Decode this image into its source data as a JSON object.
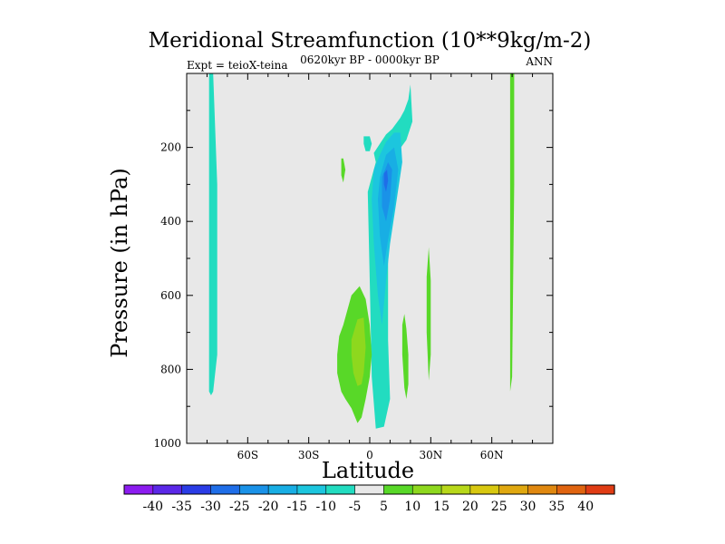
{
  "chart_data": {
    "type": "heatmap",
    "title": "Meridional Streamfunction (10**9kg/m-2)",
    "left_string": "Expt = teioX-teina",
    "center_string": "0620kyr BP - 0000kyr BP",
    "right_string": "ANN",
    "xlabel": "Latitude",
    "ylabel": "Pressure (in hPa)",
    "xlim": [
      -90,
      90
    ],
    "ylim": [
      1000,
      0
    ],
    "xticks": [
      {
        "value": -60,
        "label": "60S"
      },
      {
        "value": -30,
        "label": "30S"
      },
      {
        "value": 0,
        "label": "0"
      },
      {
        "value": 30,
        "label": "30N"
      },
      {
        "value": 60,
        "label": "60N"
      }
    ],
    "yticks": [
      {
        "value": 200,
        "label": "200"
      },
      {
        "value": 400,
        "label": "400"
      },
      {
        "value": 600,
        "label": "600"
      },
      {
        "value": 800,
        "label": "800"
      },
      {
        "value": 1000,
        "label": "1000"
      }
    ],
    "colorbar": {
      "levels": [
        -40,
        -35,
        -30,
        -25,
        -20,
        -15,
        -10,
        -5,
        5,
        10,
        15,
        20,
        25,
        30,
        35,
        40
      ],
      "labels": [
        "-40",
        "-35",
        "-30",
        "-25",
        "-20",
        "-15",
        "-10",
        "-5",
        "5",
        "10",
        "15",
        "20",
        "25",
        "30",
        "35",
        "40"
      ],
      "colors": [
        "#8c1cf0",
        "#5b28e8",
        "#2a3ce6",
        "#1f6ee8",
        "#1a92e8",
        "#18aee4",
        "#1cc6de",
        "#22dcc0",
        "#e8e8e8",
        "#58d828",
        "#8ed81e",
        "#b8d81a",
        "#d8c810",
        "#e0a810",
        "#e08810",
        "#e06410",
        "#e03c14"
      ]
    },
    "background_color": "#e8e8e8",
    "regions": [
      {
        "name": "sh-high-lat-cell",
        "value": -5,
        "color": "#22dcc0",
        "lat": [
          -79,
          -79,
          -78,
          -77,
          -75,
          -75,
          -77,
          -78
        ],
        "p": [
          0,
          860,
          870,
          860,
          760,
          300,
          0,
          0
        ]
      },
      {
        "name": "tropical-negative-cell",
        "value": -5,
        "color": "#22dcc0",
        "lat": [
          3,
          2,
          5,
          8,
          11,
          13,
          15,
          17,
          19,
          20,
          21,
          18,
          14,
          10,
          9,
          9,
          10,
          7,
          3,
          1,
          0,
          -1
        ],
        "p": [
          240,
          215,
          190,
          165,
          150,
          135,
          120,
          100,
          70,
          30,
          130,
          180,
          210,
          300,
          500,
          720,
          880,
          955,
          960,
          820,
          560,
          320
        ]
      },
      {
        "name": "tropical-minus-10",
        "value": -10,
        "color": "#1cc6de",
        "lat": [
          2,
          5,
          8,
          12,
          15,
          16,
          13,
          10,
          8,
          6,
          4,
          2,
          1
        ],
        "p": [
          260,
          220,
          185,
          160,
          160,
          240,
          350,
          460,
          560,
          680,
          600,
          460,
          340
        ]
      },
      {
        "name": "tropical-minus-15",
        "value": -15,
        "color": "#18aee4",
        "lat": [
          5,
          8,
          12,
          14,
          12,
          9,
          7,
          5,
          4
        ],
        "p": [
          280,
          220,
          200,
          260,
          360,
          450,
          520,
          440,
          340
        ]
      },
      {
        "name": "tropical-minus-20",
        "value": -20,
        "color": "#1a92e8",
        "lat": [
          6,
          9,
          11,
          10,
          8,
          6
        ],
        "p": [
          280,
          240,
          260,
          340,
          400,
          360
        ]
      },
      {
        "name": "tropical-minus-25",
        "value": -25,
        "color": "#1f6ee8",
        "lat": [
          7,
          8.5,
          9,
          8,
          7
        ],
        "p": [
          270,
          260,
          290,
          320,
          300
        ]
      },
      {
        "name": "upper-small-cell",
        "value": -5,
        "color": "#22dcc0",
        "lat": [
          -3,
          0,
          1,
          0,
          -2,
          -3
        ],
        "p": [
          170,
          170,
          190,
          210,
          210,
          190
        ]
      },
      {
        "name": "sh-small-cell",
        "value": 5,
        "color": "#58d828",
        "lat": [
          -14,
          -13,
          -12,
          -13,
          -14
        ],
        "p": [
          230,
          230,
          260,
          295,
          275
        ]
      },
      {
        "name": "sh-subtropical-cell-5",
        "value": 5,
        "color": "#58d828",
        "lat": [
          -15,
          -13,
          -9,
          -5,
          -2,
          0,
          1,
          0,
          -2,
          -4,
          -6,
          -9,
          -12,
          -14,
          -16,
          -16
        ],
        "p": [
          710,
          680,
          600,
          575,
          610,
          680,
          760,
          820,
          880,
          930,
          945,
          905,
          880,
          860,
          810,
          760
        ]
      },
      {
        "name": "sh-subtropical-cell-10",
        "value": 10,
        "color": "#8ed81e",
        "lat": [
          -9,
          -6,
          -3,
          -2,
          -3,
          -4,
          -6,
          -8,
          -9
        ],
        "p": [
          720,
          665,
          660,
          740,
          810,
          840,
          845,
          810,
          760
        ]
      },
      {
        "name": "nh-cell-near-20n",
        "value": 5,
        "color": "#58d828",
        "lat": [
          16,
          17,
          18,
          19,
          19,
          18,
          17,
          16
        ],
        "p": [
          680,
          650,
          690,
          760,
          840,
          880,
          850,
          760
        ]
      },
      {
        "name": "nh-cell-near-30n",
        "value": 5,
        "color": "#58d828",
        "lat": [
          28,
          29,
          30,
          30,
          29,
          28
        ],
        "p": [
          550,
          470,
          560,
          760,
          830,
          700
        ]
      },
      {
        "name": "nh-high-lat-cell",
        "value": 5,
        "color": "#58d828",
        "lat": [
          69,
          71,
          71,
          70,
          69,
          69
        ],
        "p": [
          0,
          0,
          300,
          820,
          860,
          700
        ]
      }
    ]
  }
}
